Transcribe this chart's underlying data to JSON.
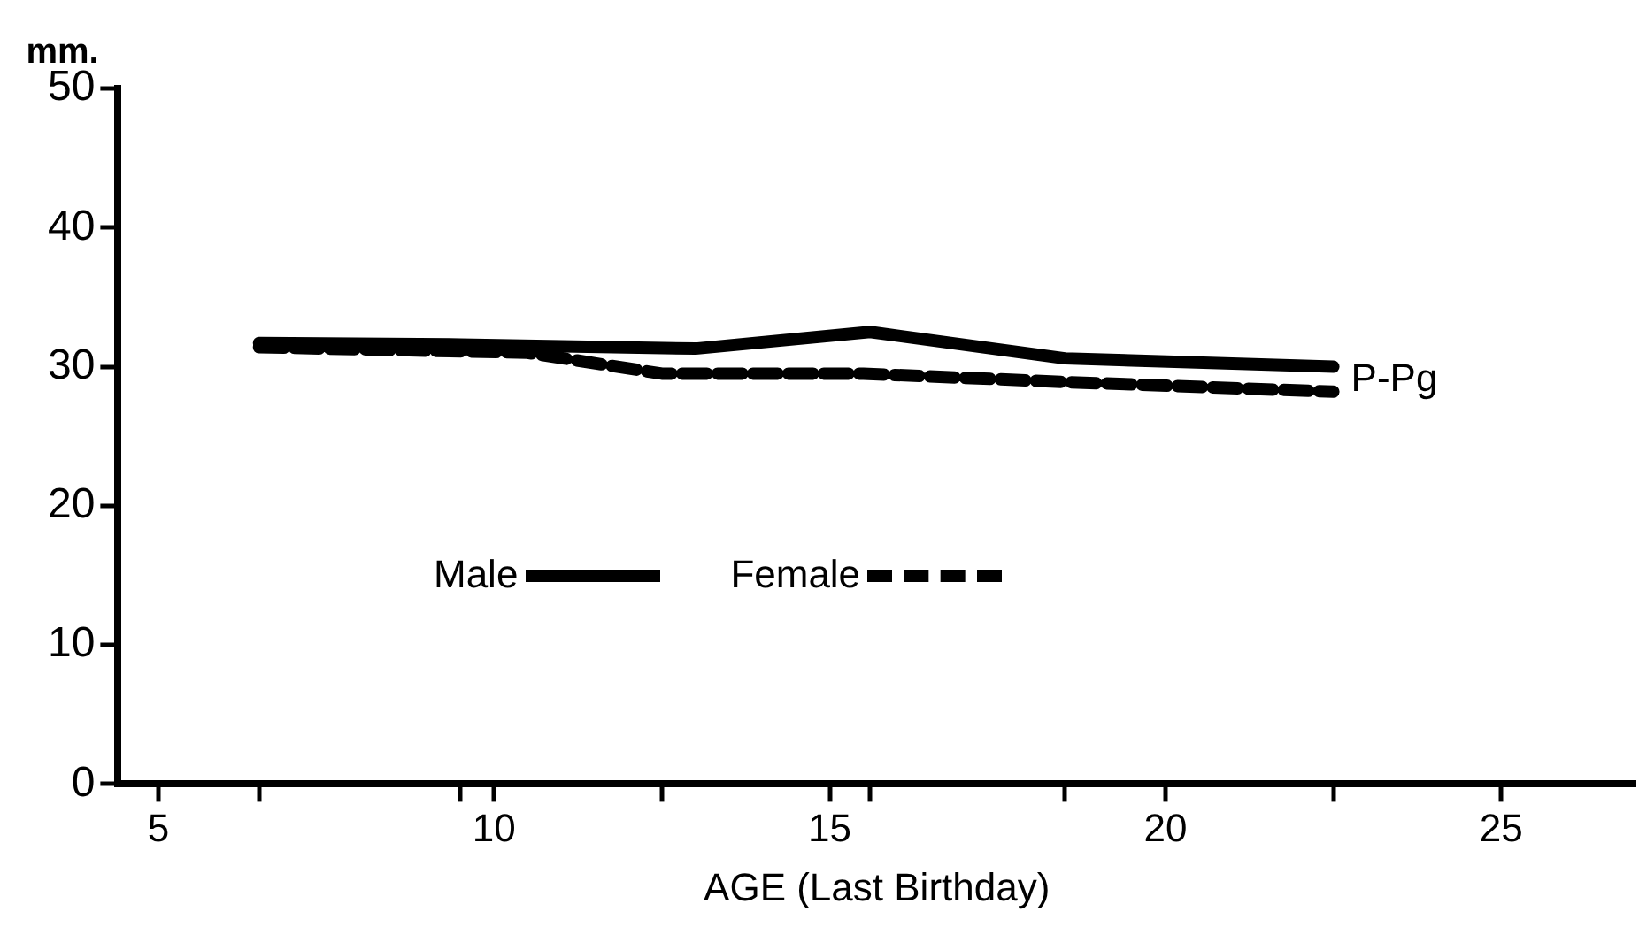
{
  "chart_data": {
    "type": "line",
    "ylabel": "mm.",
    "xlabel": "AGE (Last Birthday)",
    "xlim": [
      4.4,
      27
    ],
    "xticks": [
      5,
      {
        "value": 6.5,
        "label": null
      },
      {
        "value": 9.5,
        "label": null
      },
      10,
      {
        "value": 12.5,
        "label": null
      },
      15,
      {
        "value": 15.6,
        "label": null
      },
      {
        "value": 18.5,
        "label": null
      },
      20,
      {
        "value": 22.5,
        "label": null
      },
      25
    ],
    "ylim": [
      0,
      50
    ],
    "yticks": [
      0,
      10,
      20,
      30,
      40,
      50
    ],
    "series": [
      {
        "name": "Male",
        "color": "#000000",
        "line_style": "solid",
        "x": [
          6.5,
          9.5,
          13,
          15.6,
          18.5,
          22.5
        ],
        "values": [
          31.7,
          31.6,
          31.3,
          32.5,
          30.6,
          30.0
        ]
      },
      {
        "name": "Female",
        "color": "#000000",
        "line_style": "dashed",
        "x": [
          6.5,
          10.5,
          12.5,
          15.5,
          18.5,
          22.5
        ],
        "values": [
          31.4,
          31.0,
          29.5,
          29.5,
          28.9,
          28.2
        ]
      }
    ],
    "annotations": [
      {
        "text": "P-Pg",
        "x": 22.5,
        "y": 29
      }
    ],
    "legend": "center",
    "marker": "none",
    "grid": false
  }
}
